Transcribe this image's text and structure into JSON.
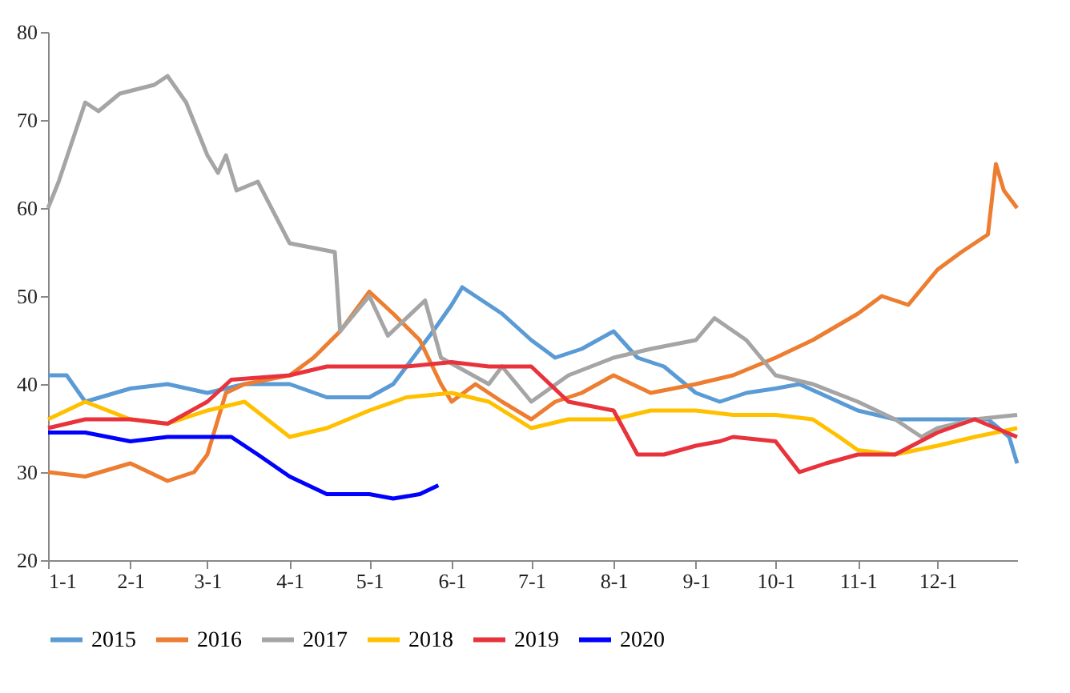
{
  "chart_data": {
    "type": "line",
    "xlim": [
      "--01-01",
      "--12-31"
    ],
    "ylim": [
      20,
      80
    ],
    "yticks": [
      20,
      30,
      40,
      50,
      60,
      70,
      80
    ],
    "xticks": [
      {
        "value": "--01-01",
        "label": "1-1"
      },
      {
        "value": "--02-01",
        "label": "2-1"
      },
      {
        "value": "--03-01",
        "label": "3-1"
      },
      {
        "value": "--04-01",
        "label": "4-1"
      },
      {
        "value": "--05-01",
        "label": "5-1"
      },
      {
        "value": "--06-01",
        "label": "6-1"
      },
      {
        "value": "--07-01",
        "label": "7-1"
      },
      {
        "value": "--08-01",
        "label": "8-1"
      },
      {
        "value": "--09-01",
        "label": "9-1"
      },
      {
        "value": "--10-01",
        "label": "10-1"
      },
      {
        "value": "--11-01",
        "label": "11-1"
      },
      {
        "value": "--12-01",
        "label": "12-1"
      }
    ],
    "grid": false,
    "legend": "bottom",
    "marker": "none",
    "line_style": "solid",
    "series": [
      {
        "name": "2015",
        "color": "#5b9bd5",
        "x": [
          "--01-01",
          "--01-08",
          "--01-15",
          "--02-01",
          "--02-15",
          "--03-01",
          "--03-15",
          "--04-01",
          "--04-15",
          "--05-01",
          "--05-10",
          "--05-20",
          "--05-25",
          "--06-01",
          "--06-05",
          "--06-20",
          "--07-01",
          "--07-10",
          "--07-20",
          "--08-01",
          "--08-10",
          "--08-20",
          "--09-01",
          "--09-10",
          "--09-20",
          "--10-01",
          "--10-10",
          "--11-01",
          "--11-15",
          "--12-01",
          "--12-20",
          "--12-28",
          "--12-31"
        ],
        "values": [
          41,
          41,
          38,
          39.5,
          40,
          39,
          40,
          40,
          38.5,
          38.5,
          40,
          44,
          46,
          49,
          51,
          48,
          45,
          43,
          44,
          46,
          43,
          42,
          39,
          38,
          39,
          39.5,
          40,
          37,
          36,
          36,
          36,
          34,
          31
        ]
      },
      {
        "name": "2016",
        "color": "#ed7d31",
        "x": [
          "--01-01",
          "--01-15",
          "--02-01",
          "--02-15",
          "--02-25",
          "--03-01",
          "--03-08",
          "--03-15",
          "--04-01",
          "--04-10",
          "--04-20",
          "--05-01",
          "--05-10",
          "--05-20",
          "--05-28",
          "--06-01",
          "--06-10",
          "--06-20",
          "--07-01",
          "--07-10",
          "--07-20",
          "--08-01",
          "--08-15",
          "--09-01",
          "--09-15",
          "--10-01",
          "--10-15",
          "--11-01",
          "--11-10",
          "--11-20",
          "--12-01",
          "--12-10",
          "--12-15",
          "--12-20",
          "--12-23",
          "--12-26",
          "--12-31"
        ],
        "values": [
          30,
          29.5,
          31,
          29,
          30,
          32,
          39,
          40,
          41,
          43,
          46,
          50.5,
          48,
          45,
          40,
          38,
          40,
          38,
          36,
          38,
          39,
          41,
          39,
          40,
          41,
          43,
          45,
          48,
          50,
          49,
          53,
          55,
          56,
          57,
          65,
          62,
          60
        ]
      },
      {
        "name": "2017",
        "color": "#a5a5a5",
        "x": [
          "--01-01",
          "--01-05",
          "--01-15",
          "--01-20",
          "--01-28",
          "--02-10",
          "--02-15",
          "--02-22",
          "--03-01",
          "--03-05",
          "--03-08",
          "--03-12",
          "--03-20",
          "--04-01",
          "--04-18",
          "--04-20",
          "--05-01",
          "--05-08",
          "--05-22",
          "--05-28",
          "--06-15",
          "--06-20",
          "--07-01",
          "--07-15",
          "--08-01",
          "--08-15",
          "--09-01",
          "--09-08",
          "--09-20",
          "--10-01",
          "--10-15",
          "--11-01",
          "--11-15",
          "--11-25",
          "--12-01",
          "--12-15",
          "--12-31"
        ],
        "values": [
          60,
          63,
          72,
          71,
          73,
          74,
          75,
          72,
          66,
          64,
          66,
          62,
          63,
          56,
          55,
          46,
          50,
          45.5,
          49.5,
          43,
          40,
          42,
          38,
          41,
          43,
          44,
          45,
          47.5,
          45,
          41,
          40,
          38,
          36,
          34,
          35,
          36,
          36.5
        ]
      },
      {
        "name": "2018",
        "color": "#ffc000",
        "x": [
          "--01-01",
          "--01-15",
          "--02-01",
          "--02-15",
          "--03-01",
          "--03-15",
          "--04-01",
          "--04-15",
          "--05-01",
          "--05-15",
          "--06-01",
          "--06-15",
          "--07-01",
          "--07-15",
          "--08-01",
          "--08-15",
          "--09-01",
          "--09-15",
          "--10-01",
          "--10-15",
          "--10-25",
          "--11-01",
          "--11-15",
          "--12-01",
          "--12-15",
          "--12-31"
        ],
        "values": [
          36,
          38,
          36,
          35.5,
          37,
          38,
          34,
          35,
          37,
          38.5,
          39,
          38,
          35,
          36,
          36,
          37,
          37,
          36.5,
          36.5,
          36,
          34,
          32.5,
          32,
          33,
          34,
          35
        ]
      },
      {
        "name": "2019",
        "color": "#e8333c",
        "x": [
          "--01-01",
          "--01-15",
          "--02-01",
          "--02-15",
          "--03-01",
          "--03-10",
          "--04-01",
          "--04-15",
          "--05-01",
          "--05-15",
          "--06-01",
          "--06-15",
          "--07-01",
          "--07-15",
          "--08-01",
          "--08-10",
          "--08-20",
          "--09-01",
          "--09-10",
          "--09-15",
          "--10-01",
          "--10-10",
          "--10-20",
          "--11-01",
          "--11-15",
          "--12-01",
          "--12-15",
          "--12-31"
        ],
        "values": [
          35,
          36,
          36,
          35.5,
          38,
          40.5,
          41,
          42,
          42,
          42,
          42.5,
          42,
          42,
          38,
          37,
          32,
          32,
          33,
          33.5,
          34,
          33.5,
          30,
          31,
          32,
          32,
          34.5,
          36,
          34
        ]
      },
      {
        "name": "2020",
        "color": "#0000ff",
        "x": [
          "--01-01",
          "--01-15",
          "--02-01",
          "--02-15",
          "--03-01",
          "--03-10",
          "--03-20",
          "--04-01",
          "--04-15",
          "--05-01",
          "--05-10",
          "--05-20",
          "--05-27"
        ],
        "values": [
          34.5,
          34.5,
          33.5,
          34,
          34,
          34,
          32,
          29.5,
          27.5,
          27.5,
          27,
          27.5,
          28.5
        ]
      }
    ]
  }
}
